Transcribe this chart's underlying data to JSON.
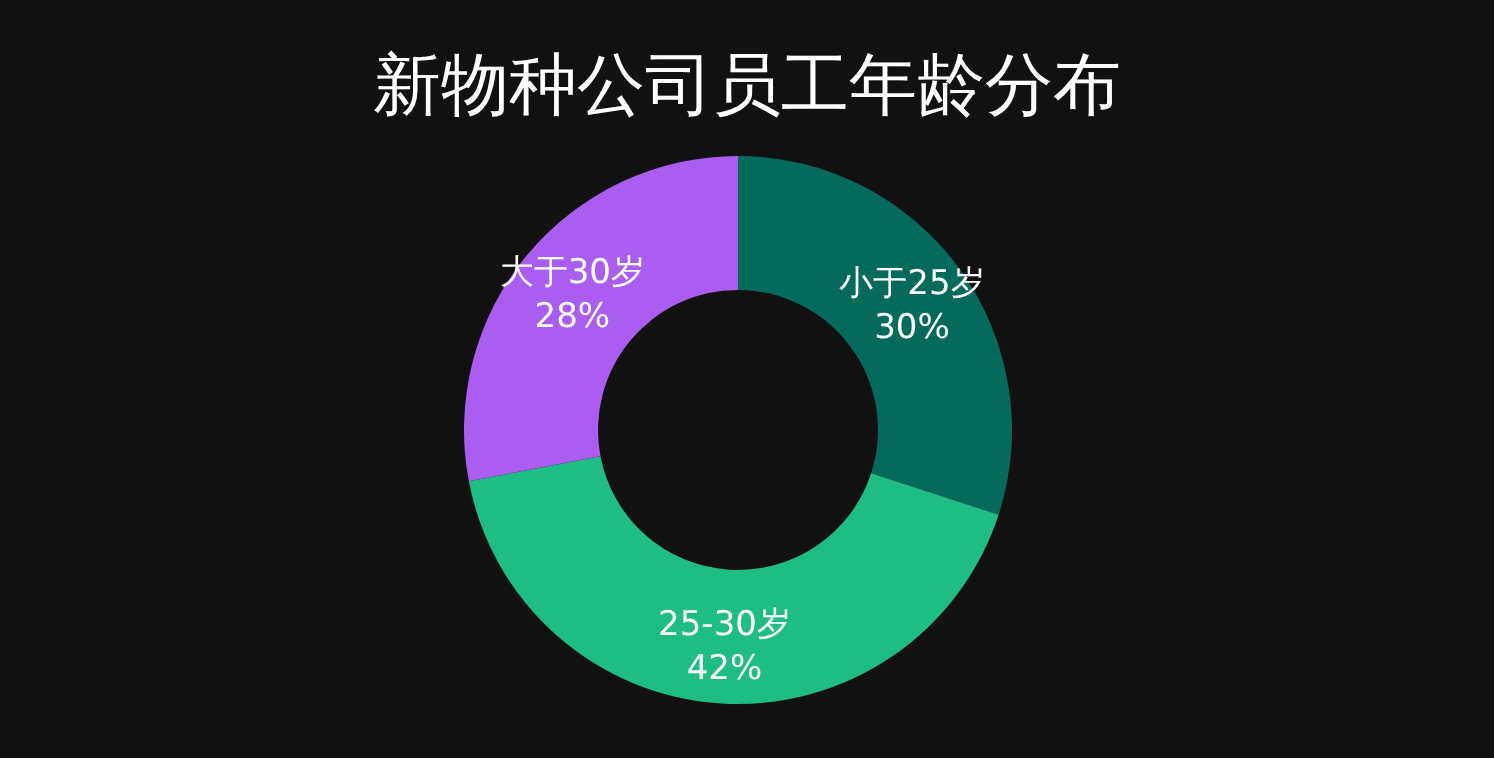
{
  "chart_data": {
    "type": "donut",
    "title": "新物种公司员工年龄分布",
    "categories": [
      "小于25岁",
      "25-30岁",
      "大于30岁"
    ],
    "values": [
      30,
      42,
      28
    ],
    "value_labels": [
      "30%",
      "42%",
      "28%"
    ],
    "colors": [
      "#046b5b",
      "#1ebd84",
      "#ab5df2"
    ]
  }
}
